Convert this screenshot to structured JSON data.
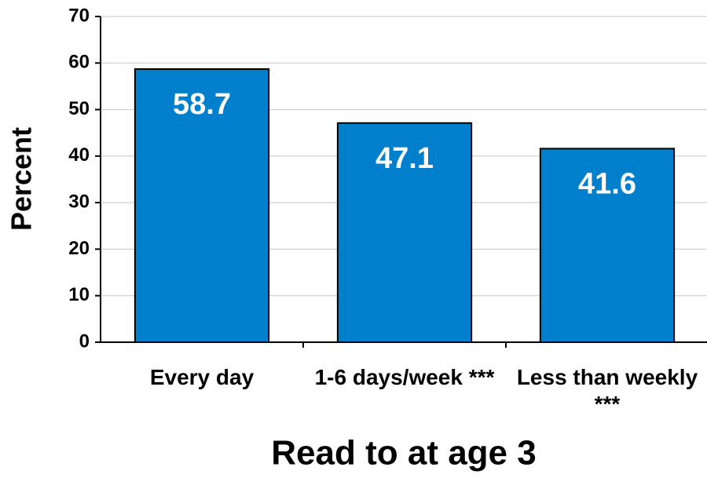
{
  "chart_data": {
    "type": "bar",
    "title": "Read to at age 3",
    "y_label": "Percent",
    "categories": [
      "Every day",
      "1-6 days/week ***",
      "Less than weekly ***"
    ],
    "values": [
      58.7,
      47.1,
      41.6
    ],
    "color": "#0080cc",
    "ylim": [
      0,
      70
    ],
    "yticks": [
      0,
      10,
      20,
      30,
      40,
      50,
      60,
      70
    ],
    "grid": true
  }
}
